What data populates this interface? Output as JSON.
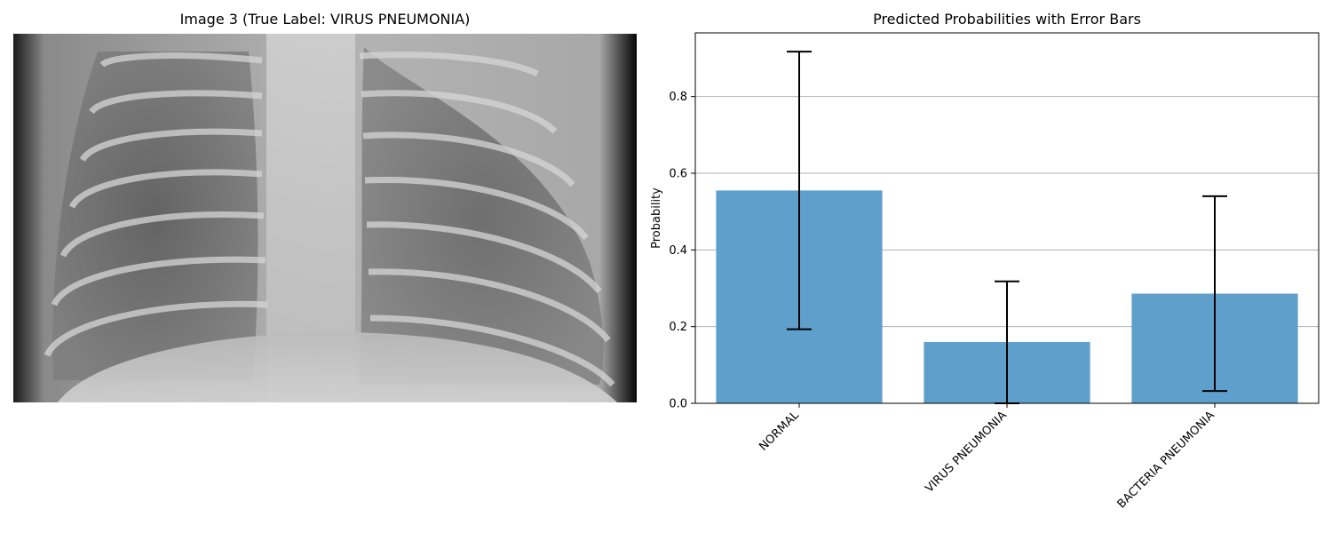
{
  "left_panel": {
    "title": "Image 3 (True Label: VIRUS PNEUMONIA)"
  },
  "chart_data": {
    "type": "bar",
    "title": "Predicted Probabilities with Error Bars",
    "xlabel": "",
    "ylabel": "Probability",
    "categories": [
      "NORMAL",
      "VIRUS PNEUMONIA",
      "BACTERIA PNEUMONIA"
    ],
    "values": [
      0.555,
      0.16,
      0.286
    ],
    "error_low": [
      0.193,
      0.0,
      0.032
    ],
    "error_high": [
      0.917,
      0.318,
      0.54
    ],
    "ylim": [
      0,
      0.966
    ],
    "yticks": [
      0.0,
      0.2,
      0.4,
      0.6,
      0.8
    ],
    "ytick_labels": [
      "0.0",
      "0.2",
      "0.4",
      "0.6",
      "0.8"
    ],
    "grid": "y",
    "colors": {
      "bar": "#5f9fcc",
      "error": "#000000",
      "grid": "#b0b0b0"
    }
  }
}
